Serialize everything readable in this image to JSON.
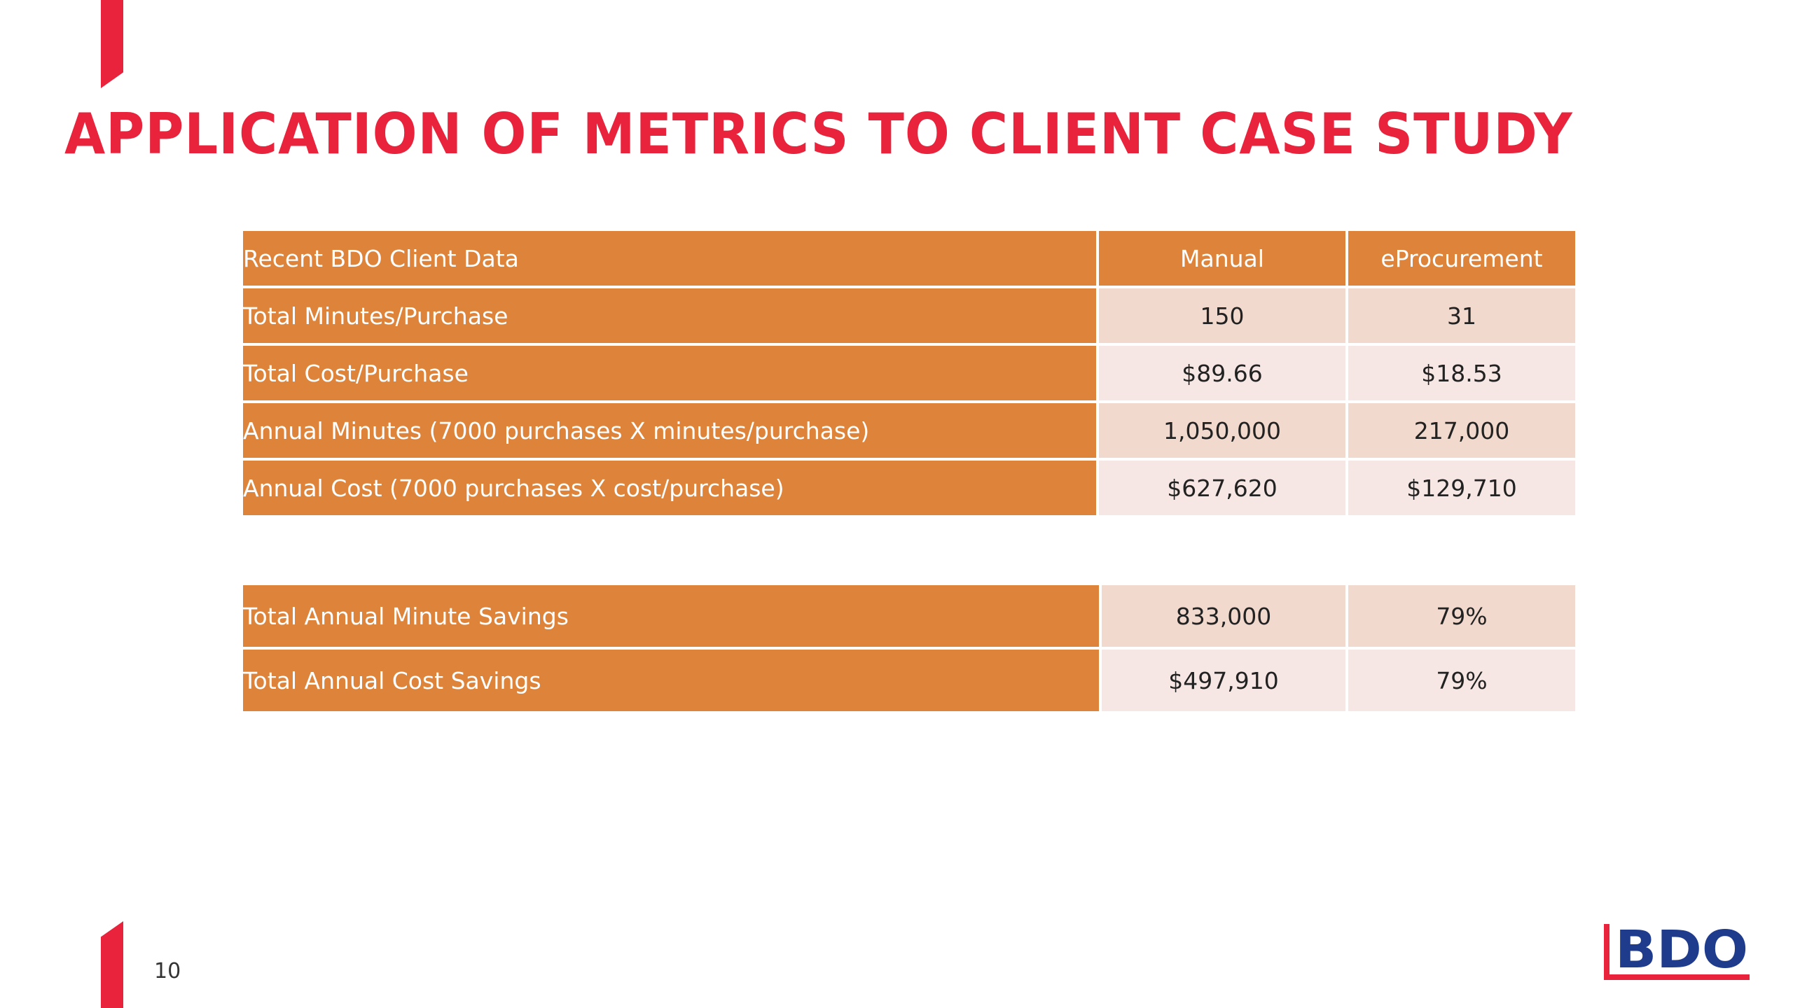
{
  "slide": {
    "title": "APPLICATION OF METRICS TO CLIENT CASE STUDY",
    "page_number": "10"
  },
  "colors": {
    "accent_red": "#e8233b",
    "header_orange": "#dd843a",
    "cell_pink_dark": "#f2d9cd",
    "cell_pink_light": "#f7e7e4",
    "logo_blue": "#1f3b8c"
  },
  "main_table": {
    "headers": [
      "Recent BDO Client Data",
      "Manual",
      "eProcurement"
    ],
    "rows": [
      {
        "label": "Total Minutes/Purchase",
        "manual": "150",
        "eprocurement": "31"
      },
      {
        "label": "Total Cost/Purchase",
        "manual": "$89.66",
        "eprocurement": "$18.53"
      },
      {
        "label": "Annual Minutes (7000 purchases X minutes/purchase)",
        "manual": "1,050,000",
        "eprocurement": "217,000"
      },
      {
        "label": "Annual Cost (7000 purchases X cost/purchase)",
        "manual": "$627,620",
        "eprocurement": "$129,710"
      }
    ]
  },
  "savings_table": {
    "rows": [
      {
        "label": "Total Annual Minute Savings",
        "amount": "833,000",
        "percent": "79%"
      },
      {
        "label": "Total Annual Cost Savings",
        "amount": "$497,910",
        "percent": "79%"
      }
    ]
  },
  "logo": {
    "text": "BDO",
    "icon": "bdo-logo-icon"
  }
}
